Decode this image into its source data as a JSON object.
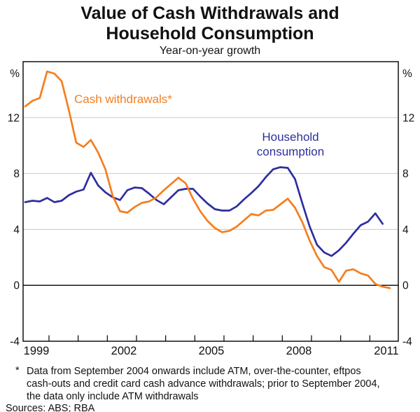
{
  "title": "Value of Cash Withdrawals and Household Consumption",
  "subtitle": "Year-on-year growth",
  "footnote_marker": "*",
  "footnote_lines": [
    "Data from September 2004 onwards include ATM, over-the-counter, eftpos",
    "cash-outs and credit card cash advance withdrawals; prior to September 2004,",
    "the data only include ATM withdrawals"
  ],
  "sources": "Sources: ABS; RBA",
  "chart_data": {
    "type": "line",
    "title": "Value of Cash Withdrawals and Household Consumption",
    "subtitle": "Year-on-year growth",
    "unit_label": "%",
    "ylim": [
      -4,
      16
    ],
    "gridline_values": [
      4,
      8,
      12
    ],
    "zero_line": true,
    "grid_color": "#c8c8c8",
    "axis_color": "#000000",
    "y_axis_ticks": [
      {
        "value": 16,
        "label": "%"
      },
      {
        "value": 12,
        "label": "12"
      },
      {
        "value": 8,
        "label": "8"
      },
      {
        "value": 4,
        "label": "4"
      },
      {
        "value": 0,
        "label": "0"
      },
      {
        "value": -4,
        "label": "-4"
      }
    ],
    "y_labels_both_sides": true,
    "x_axis": {
      "tick_years": [
        2000,
        2001,
        2002,
        2003,
        2004,
        2005,
        2006,
        2007,
        2008,
        2009,
        2010,
        2011
      ],
      "year_labels": [
        "1999",
        "2002",
        "2005",
        "2008",
        "2011"
      ]
    },
    "frequency": "quarterly",
    "x_start": "1999 Q1",
    "series": [
      {
        "name": "Household consumption",
        "color": "#2d2f9e",
        "values": [
          5.95,
          6.05,
          6.0,
          6.25,
          5.95,
          6.05,
          6.45,
          6.7,
          6.85,
          8.05,
          7.15,
          6.65,
          6.3,
          6.1,
          6.8,
          7.0,
          6.95,
          6.55,
          6.1,
          5.8,
          6.3,
          6.8,
          6.9,
          6.9,
          6.35,
          5.85,
          5.45,
          5.35,
          5.35,
          5.65,
          6.15,
          6.6,
          7.1,
          7.75,
          8.3,
          8.45,
          8.4,
          7.6,
          5.85,
          4.2,
          2.9,
          2.35,
          2.1,
          2.5,
          3.05,
          3.7,
          4.3,
          4.55,
          5.15,
          4.4
        ]
      },
      {
        "name": "Cash withdrawals*",
        "color": "#f57e1e",
        "values": [
          12.8,
          13.2,
          13.4,
          15.3,
          15.15,
          14.6,
          12.5,
          10.2,
          9.9,
          10.4,
          9.5,
          8.3,
          6.4,
          5.3,
          5.2,
          5.6,
          5.9,
          6.0,
          6.3,
          6.8,
          7.25,
          7.7,
          7.3,
          6.2,
          5.3,
          4.6,
          4.1,
          3.8,
          3.9,
          4.2,
          4.65,
          5.1,
          5.0,
          5.35,
          5.4,
          5.8,
          6.2,
          5.55,
          4.5,
          3.2,
          2.1,
          1.3,
          1.1,
          0.25,
          1.05,
          1.15,
          0.85,
          0.7,
          0.1,
          -0.1,
          -0.2
        ]
      }
    ]
  }
}
